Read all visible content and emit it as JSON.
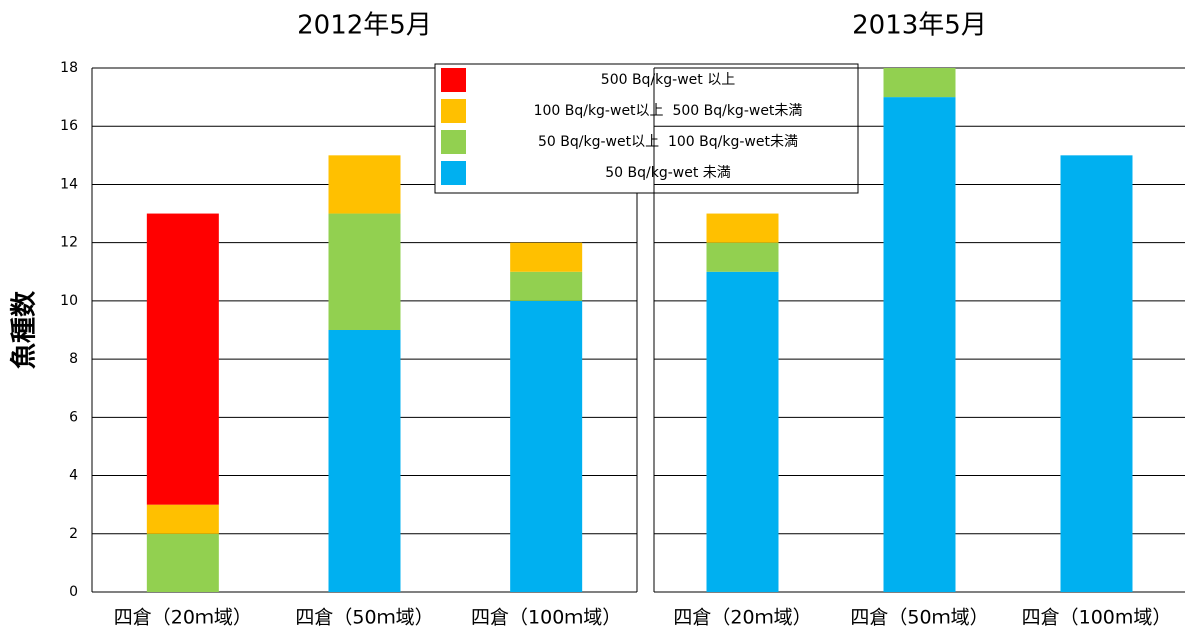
{
  "chart_data": [
    {
      "type": "stacked_bar",
      "title": "2012年5月",
      "ylabel": "魚種数",
      "categories": [
        "四倉（20ｍ域）",
        "四倉（50ｍ域）",
        "四倉（100ｍ域）"
      ],
      "series": [
        {
          "name": "50 Bq/kg-wet 未満",
          "color": "#00b0f0",
          "values": [
            0,
            9,
            10
          ]
        },
        {
          "name": "50 Bq/kg-wet以上  100 Bq/kg-wet未満",
          "color": "#92d050",
          "values": [
            2,
            4,
            1
          ]
        },
        {
          "name": "100 Bq/kg-wet以上  500 Bq/kg-wet未満",
          "color": "#ffc000",
          "values": [
            1,
            2,
            1
          ]
        },
        {
          "name": "500 Bq/kg-wet 以上",
          "color": "#ff0000",
          "values": [
            10,
            0,
            0
          ]
        }
      ],
      "ylim": [
        0,
        18
      ],
      "yticks": [
        0,
        2,
        4,
        6,
        8,
        10,
        12,
        14,
        16,
        18
      ],
      "grid": true,
      "legend": "top-right"
    },
    {
      "type": "stacked_bar",
      "title": "2013年5月",
      "categories": [
        "四倉（20ｍ域）",
        "四倉（50ｍ域）",
        "四倉（100m域）"
      ],
      "series": [
        {
          "color": "#00b0f0",
          "values": [
            11,
            17,
            15
          ]
        },
        {
          "color": "#92d050",
          "values": [
            1,
            1,
            0
          ]
        },
        {
          "color": "#ffc000",
          "values": [
            1,
            0,
            0
          ]
        },
        {
          "color": "#ff0000",
          "values": [
            0,
            0,
            0
          ]
        }
      ],
      "ylim": [
        0,
        18
      ],
      "grid": true
    }
  ]
}
